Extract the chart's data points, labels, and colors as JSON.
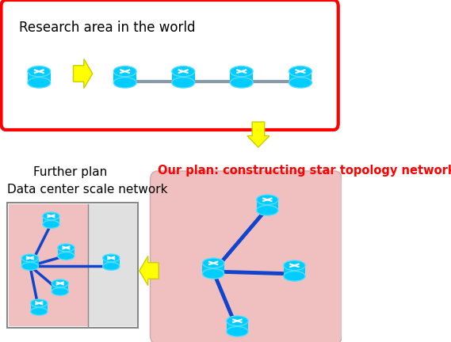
{
  "top_box_text": "Research area in the world",
  "plan_text": "Our plan: constructing star topology network",
  "further_plan_text": "Further plan",
  "data_center_text": "Data center scale network",
  "top_box_color": "#ff0000",
  "top_box_fill": "#ffffff",
  "star_box_fill": "#f0c0c0",
  "dc_box_fill_left": "#f0c0c0",
  "dc_box_fill_right": "#e0e0e0",
  "node_color": "#00ccff",
  "line_color": "#1144cc",
  "arrow_fill": "#ffff00",
  "arrow_edge": "#cccc00",
  "plan_text_color": "#ff0000"
}
